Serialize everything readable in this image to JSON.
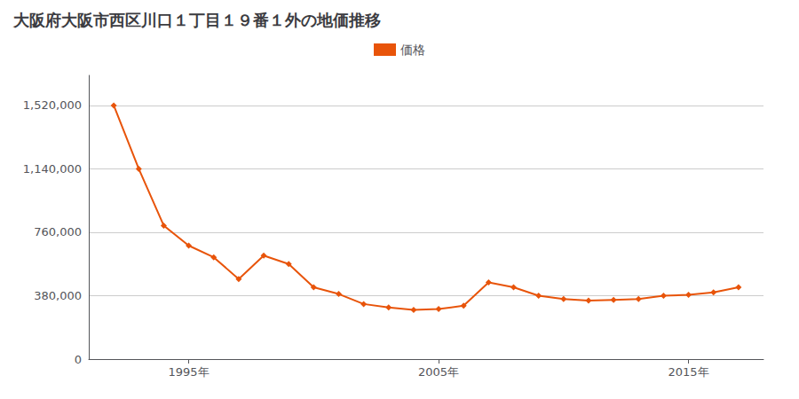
{
  "chart_data": {
    "type": "line",
    "title": "大阪府大阪市西区川口１丁目１９番１外の地価推移",
    "x": [
      1992,
      1993,
      1994,
      1995,
      1996,
      1997,
      1998,
      1999,
      2000,
      2001,
      2002,
      2003,
      2004,
      2005,
      2006,
      2007,
      2008,
      2009,
      2010,
      2011,
      2012,
      2013,
      2014,
      2015,
      2016,
      2017
    ],
    "series": [
      {
        "name": "価格",
        "color": "#e8540a",
        "marker": "diamond",
        "values": [
          1520000,
          1140000,
          800000,
          680000,
          610000,
          480000,
          620000,
          570000,
          430000,
          390000,
          330000,
          310000,
          295000,
          300000,
          320000,
          460000,
          430000,
          380000,
          360000,
          350000,
          355000,
          360000,
          380000,
          385000,
          400000,
          430000
        ]
      }
    ],
    "xlim": [
      1991,
      2018
    ],
    "xticks": [
      {
        "value": 1995,
        "label": "1995年"
      },
      {
        "value": 2005,
        "label": "2005年"
      },
      {
        "value": 2015,
        "label": "2015年"
      }
    ],
    "ylim": [
      0,
      1700000
    ],
    "yticks": [
      0,
      {
        "value": 380000,
        "label": "380,000"
      },
      {
        "value": 760000,
        "label": "760,000"
      },
      {
        "value": 1140000,
        "label": "1,140,000"
      },
      {
        "value": 1520000,
        "label": "1,520,000"
      }
    ],
    "grid": true,
    "legend": "top"
  }
}
